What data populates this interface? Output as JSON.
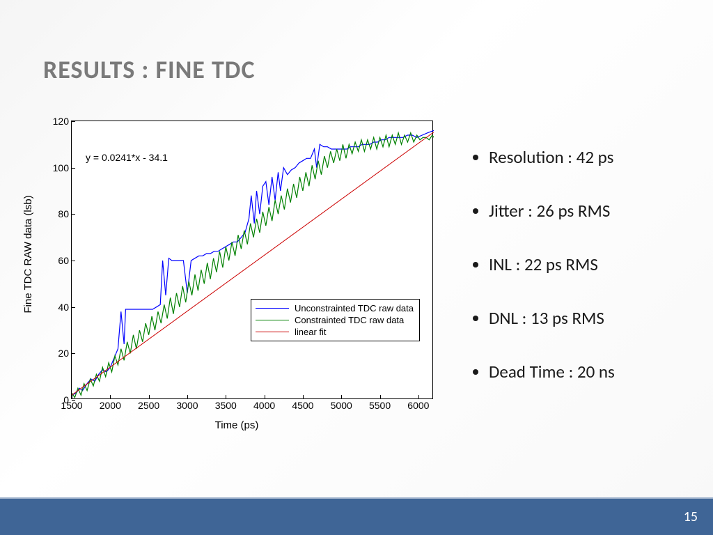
{
  "title": "RESULTS : FINE TDC",
  "page_number": "15",
  "bullets": [
    "Resolution : 42 ps",
    "Jitter : 26 ps RMS",
    "INL : 22 ps RMS",
    "DNL : 13 ps RMS",
    "Dead Time : 20 ns"
  ],
  "chart": {
    "type": "line",
    "xlabel": "Time (ps)",
    "ylabel": "Fine TDC RAW data (lsb)",
    "xlim": [
      1500,
      6200
    ],
    "ylim": [
      0,
      120
    ],
    "xticks": [
      1500,
      2000,
      2500,
      3000,
      3500,
      4000,
      4500,
      5000,
      5500,
      6000
    ],
    "yticks": [
      0,
      20,
      40,
      60,
      80,
      100,
      120
    ],
    "equation": "y  =  0.0241*x - 34.1",
    "equation_fontsize": 14,
    "label_fontsize": 15,
    "tick_fontsize": 14,
    "background_color": "#ffffff",
    "border_color": "#000000",
    "series": [
      {
        "name": "Unconstrainted TDC raw data",
        "color": "#0000ff",
        "line_width": 1.2,
        "data": [
          [
            1500,
            2
          ],
          [
            1560,
            3
          ],
          [
            1600,
            5
          ],
          [
            1640,
            4
          ],
          [
            1700,
            7
          ],
          [
            1750,
            9
          ],
          [
            1800,
            8
          ],
          [
            1850,
            11
          ],
          [
            1900,
            13
          ],
          [
            1950,
            12
          ],
          [
            2000,
            14
          ],
          [
            2050,
            18
          ],
          [
            2100,
            22
          ],
          [
            2140,
            38
          ],
          [
            2180,
            24
          ],
          [
            2200,
            39
          ],
          [
            2250,
            39
          ],
          [
            2300,
            39
          ],
          [
            2350,
            39
          ],
          [
            2400,
            39
          ],
          [
            2450,
            39
          ],
          [
            2500,
            39
          ],
          [
            2550,
            39
          ],
          [
            2600,
            40
          ],
          [
            2650,
            41
          ],
          [
            2680,
            60
          ],
          [
            2720,
            45
          ],
          [
            2760,
            61
          ],
          [
            2800,
            60
          ],
          [
            2850,
            60
          ],
          [
            2900,
            60
          ],
          [
            2950,
            60
          ],
          [
            3000,
            46
          ],
          [
            3050,
            60
          ],
          [
            3100,
            61
          ],
          [
            3150,
            62
          ],
          [
            3200,
            62
          ],
          [
            3250,
            63
          ],
          [
            3300,
            63
          ],
          [
            3350,
            64
          ],
          [
            3400,
            64
          ],
          [
            3450,
            65
          ],
          [
            3500,
            66
          ],
          [
            3550,
            67
          ],
          [
            3600,
            68
          ],
          [
            3650,
            68
          ],
          [
            3700,
            70
          ],
          [
            3750,
            72
          ],
          [
            3800,
            78
          ],
          [
            3830,
            88
          ],
          [
            3870,
            76
          ],
          [
            3900,
            90
          ],
          [
            3940,
            80
          ],
          [
            3980,
            92
          ],
          [
            4020,
            94
          ],
          [
            4060,
            84
          ],
          [
            4100,
            96
          ],
          [
            4140,
            86
          ],
          [
            4180,
            98
          ],
          [
            4210,
            90
          ],
          [
            4250,
            100
          ],
          [
            4300,
            97
          ],
          [
            4350,
            99
          ],
          [
            4400,
            100
          ],
          [
            4450,
            102
          ],
          [
            4500,
            103
          ],
          [
            4550,
            104
          ],
          [
            4600,
            104
          ],
          [
            4650,
            108
          ],
          [
            4680,
            100
          ],
          [
            4720,
            110
          ],
          [
            4770,
            109
          ],
          [
            4820,
            109
          ],
          [
            4870,
            108
          ],
          [
            4920,
            108
          ],
          [
            4970,
            108
          ],
          [
            5020,
            108
          ],
          [
            5070,
            108
          ],
          [
            5120,
            109
          ],
          [
            5170,
            109
          ],
          [
            5220,
            109
          ],
          [
            5270,
            110
          ],
          [
            5320,
            110
          ],
          [
            5370,
            110
          ],
          [
            5420,
            111
          ],
          [
            5470,
            111
          ],
          [
            5520,
            112
          ],
          [
            5570,
            112
          ],
          [
            5620,
            113
          ],
          [
            5680,
            113
          ],
          [
            5740,
            113
          ],
          [
            5800,
            113
          ],
          [
            5860,
            114
          ],
          [
            5920,
            114
          ],
          [
            5980,
            113
          ],
          [
            6050,
            114
          ],
          [
            6120,
            115
          ],
          [
            6200,
            116
          ]
        ]
      },
      {
        "name": "Constrainted TDC raw data",
        "color": "#008000",
        "line_width": 1.2,
        "data": [
          [
            1500,
            3
          ],
          [
            1540,
            1
          ],
          [
            1580,
            5
          ],
          [
            1620,
            2
          ],
          [
            1660,
            7
          ],
          [
            1700,
            4
          ],
          [
            1740,
            9
          ],
          [
            1780,
            6
          ],
          [
            1820,
            11
          ],
          [
            1860,
            8
          ],
          [
            1900,
            14
          ],
          [
            1940,
            10
          ],
          [
            1980,
            16
          ],
          [
            2020,
            12
          ],
          [
            2060,
            19
          ],
          [
            2100,
            15
          ],
          [
            2140,
            22
          ],
          [
            2180,
            17
          ],
          [
            2220,
            25
          ],
          [
            2260,
            20
          ],
          [
            2300,
            28
          ],
          [
            2340,
            22
          ],
          [
            2380,
            30
          ],
          [
            2420,
            25
          ],
          [
            2460,
            33
          ],
          [
            2500,
            28
          ],
          [
            2540,
            36
          ],
          [
            2580,
            30
          ],
          [
            2620,
            38
          ],
          [
            2660,
            33
          ],
          [
            2700,
            41
          ],
          [
            2740,
            35
          ],
          [
            2780,
            44
          ],
          [
            2820,
            37
          ],
          [
            2860,
            46
          ],
          [
            2900,
            40
          ],
          [
            2940,
            49
          ],
          [
            2980,
            42
          ],
          [
            3020,
            51
          ],
          [
            3060,
            45
          ],
          [
            3100,
            54
          ],
          [
            3140,
            47
          ],
          [
            3180,
            56
          ],
          [
            3220,
            50
          ],
          [
            3260,
            59
          ],
          [
            3300,
            52
          ],
          [
            3340,
            61
          ],
          [
            3380,
            55
          ],
          [
            3420,
            64
          ],
          [
            3460,
            57
          ],
          [
            3500,
            66
          ],
          [
            3540,
            60
          ],
          [
            3580,
            68
          ],
          [
            3620,
            62
          ],
          [
            3660,
            71
          ],
          [
            3700,
            65
          ],
          [
            3740,
            73
          ],
          [
            3780,
            67
          ],
          [
            3820,
            76
          ],
          [
            3860,
            70
          ],
          [
            3900,
            78
          ],
          [
            3940,
            72
          ],
          [
            3980,
            81
          ],
          [
            4020,
            75
          ],
          [
            4060,
            83
          ],
          [
            4100,
            77
          ],
          [
            4140,
            86
          ],
          [
            4180,
            80
          ],
          [
            4220,
            88
          ],
          [
            4260,
            82
          ],
          [
            4300,
            91
          ],
          [
            4340,
            85
          ],
          [
            4380,
            93
          ],
          [
            4420,
            87
          ],
          [
            4460,
            96
          ],
          [
            4500,
            90
          ],
          [
            4540,
            98
          ],
          [
            4580,
            92
          ],
          [
            4620,
            101
          ],
          [
            4660,
            95
          ],
          [
            4700,
            103
          ],
          [
            4740,
            97
          ],
          [
            4780,
            105
          ],
          [
            4820,
            100
          ],
          [
            4860,
            107
          ],
          [
            4900,
            102
          ],
          [
            4940,
            108
          ],
          [
            4980,
            103
          ],
          [
            5020,
            110
          ],
          [
            5060,
            104
          ],
          [
            5100,
            110
          ],
          [
            5140,
            106
          ],
          [
            5180,
            111
          ],
          [
            5220,
            107
          ],
          [
            5260,
            112
          ],
          [
            5300,
            107
          ],
          [
            5340,
            112
          ],
          [
            5380,
            108
          ],
          [
            5420,
            113
          ],
          [
            5460,
            108
          ],
          [
            5500,
            113
          ],
          [
            5540,
            109
          ],
          [
            5580,
            114
          ],
          [
            5620,
            109
          ],
          [
            5660,
            114
          ],
          [
            5700,
            110
          ],
          [
            5740,
            115
          ],
          [
            5780,
            110
          ],
          [
            5820,
            114
          ],
          [
            5860,
            111
          ],
          [
            5900,
            115
          ],
          [
            5940,
            111
          ],
          [
            5980,
            114
          ],
          [
            6020,
            112
          ],
          [
            6060,
            113
          ],
          [
            6100,
            113
          ],
          [
            6140,
            112
          ],
          [
            6180,
            114
          ],
          [
            6200,
            113
          ]
        ]
      },
      {
        "name": "linear fit",
        "color": "#cc0000",
        "line_width": 1,
        "data": [
          [
            1500,
            2.05
          ],
          [
            6200,
            115.32
          ]
        ]
      }
    ],
    "legend": {
      "position": "lower-right",
      "border_color": "#000000",
      "background_color": "#ffffff",
      "fontsize": 13
    }
  },
  "footer": {
    "bar_color": "#3f6596",
    "bar_border_top": "#9fb2cc"
  }
}
